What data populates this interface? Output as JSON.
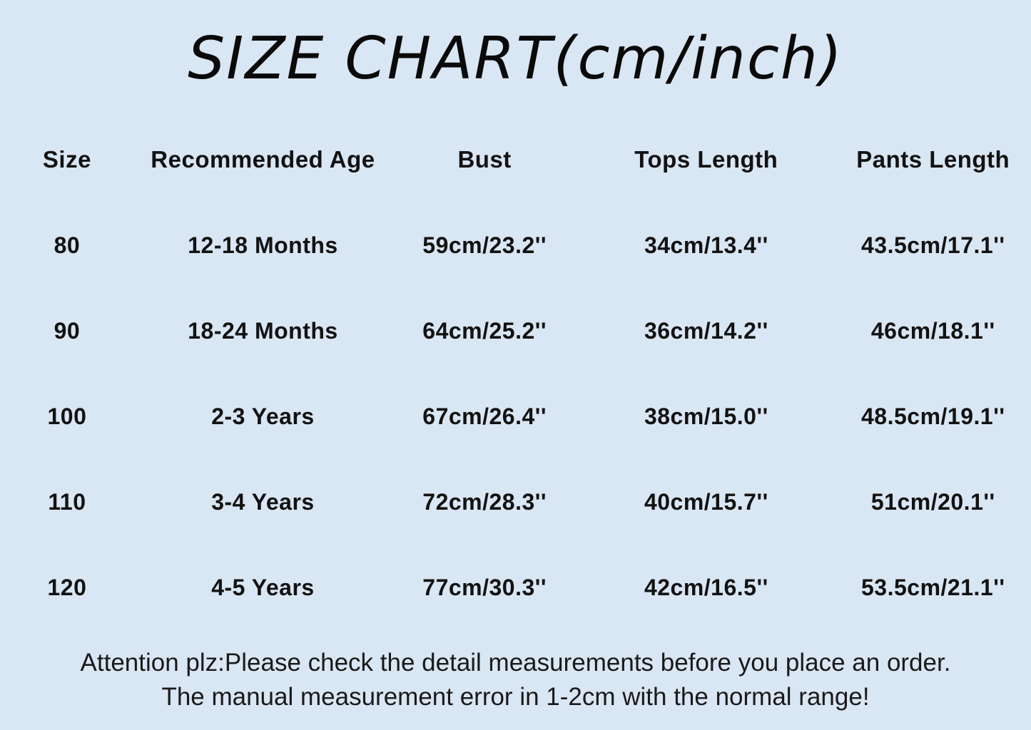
{
  "page": {
    "background_color": "#d9e6f3",
    "text_color": "#111111"
  },
  "title": "SIZE CHART(cm/inch)",
  "chart_data": {
    "type": "table",
    "title": "SIZE CHART(cm/inch)",
    "columns": [
      "Size",
      "Recommended Age",
      "Bust",
      "Tops Length",
      "Pants Length"
    ],
    "rows": [
      [
        "80",
        "12-18 Months",
        "59cm/23.2''",
        "34cm/13.4''",
        "43.5cm/17.1''"
      ],
      [
        "90",
        "18-24 Months",
        "64cm/25.2''",
        "36cm/14.2''",
        "46cm/18.1''"
      ],
      [
        "100",
        "2-3 Years",
        "67cm/26.4''",
        "38cm/15.0''",
        "48.5cm/19.1''"
      ],
      [
        "110",
        "3-4 Years",
        "72cm/28.3''",
        "40cm/15.7''",
        "51cm/20.1''"
      ],
      [
        "120",
        "4-5 Years",
        "77cm/30.3''",
        "42cm/16.5''",
        "53.5cm/21.1''"
      ]
    ]
  },
  "footer": {
    "line1": "Attention plz:Please check the detail measurements before you place an order.",
    "line2": "The manual measurement error in 1-2cm with the normal range!"
  }
}
